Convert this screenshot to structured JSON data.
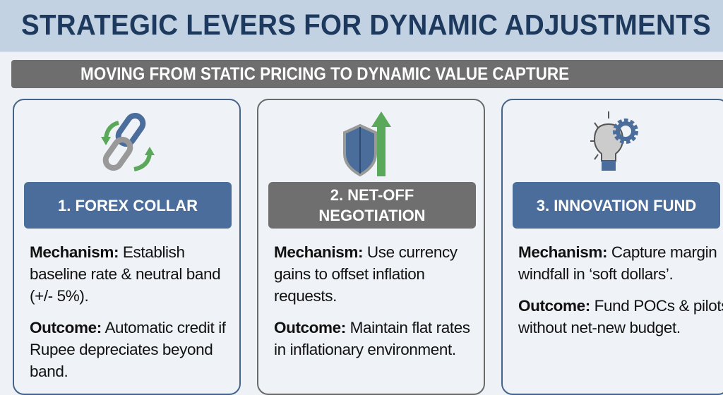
{
  "title": "STRATEGIC LEVERS FOR DYNAMIC ADJUSTMENTS",
  "banner": "MOVING FROM STATIC PRICING TO DYNAMIC VALUE CAPTURE",
  "colors": {
    "header_bg": "#c3d2e2",
    "title": "#1d3a5e",
    "banner_bg": "#6e6e6e",
    "blue": "#4a6d9c",
    "gray": "#6f6f6f",
    "green": "#5aa85a"
  },
  "cards": [
    {
      "icon": "chain-link-cycle-icon",
      "label": "1. FOREX COLLAR",
      "mechanism_label": "Mechanism:",
      "mechanism": "Establish baseline rate & neutral band (+/- 5%).",
      "outcome_label": "Outcome:",
      "outcome": "Automatic credit if Rupee depreciates beyond band."
    },
    {
      "icon": "shield-arrow-up-icon",
      "label": "2. NET-OFF NEGOTIATION",
      "mechanism_label": "Mechanism:",
      "mechanism": "Use currency gains to offset inflation requests.",
      "outcome_label": "Outcome:",
      "outcome": "Maintain flat rates in inflationary environment."
    },
    {
      "icon": "lightbulb-gear-icon",
      "label": "3. INNOVATION FUND",
      "mechanism_label": "Mechanism:",
      "mechanism": "Capture margin windfall in ‘soft dollars’.",
      "outcome_label": "Outcome:",
      "outcome": "Fund POCs & pilots without net-new budget."
    }
  ]
}
